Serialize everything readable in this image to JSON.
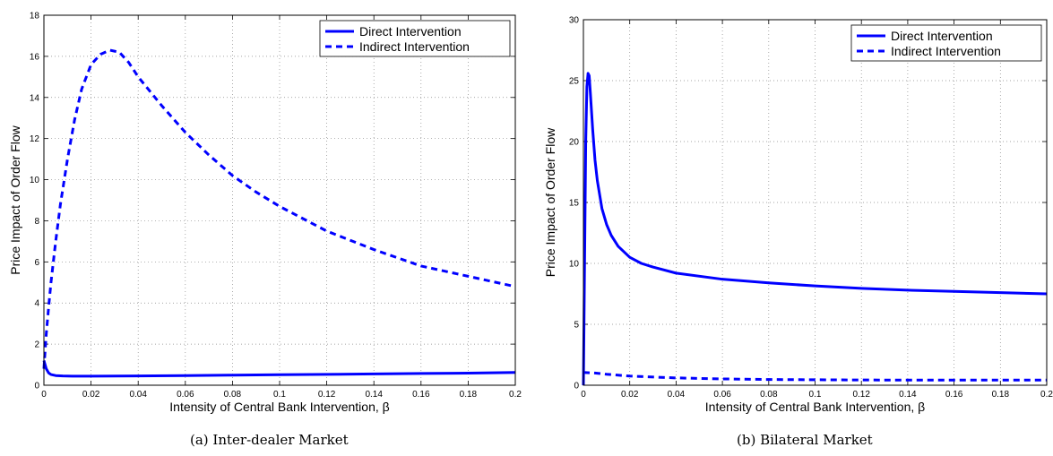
{
  "chart_data": [
    {
      "type": "line",
      "caption": "(a) Inter-dealer Market",
      "xlabel": "Intensity of Central Bank Intervention,  β",
      "ylabel": "Price Impact of Order Flow",
      "xlim": [
        0,
        0.2
      ],
      "ylim": [
        0,
        18
      ],
      "xticks": [
        0,
        0.02,
        0.04,
        0.06,
        0.08,
        0.1,
        0.12,
        0.14,
        0.16,
        0.18,
        0.2
      ],
      "xtick_labels": [
        "0",
        "0.02",
        "0.04",
        "0.06",
        "0.08",
        "0.1",
        "0.12",
        "0.14",
        "0.16",
        "0.18",
        "0.2"
      ],
      "yticks": [
        0,
        2,
        4,
        6,
        8,
        10,
        12,
        14,
        16,
        18
      ],
      "ytick_labels": [
        "0",
        "2",
        "4",
        "6",
        "8",
        "10",
        "12",
        "14",
        "16",
        "18"
      ],
      "grid": true,
      "legend_position": "top-right",
      "series": [
        {
          "name": "Direct Intervention",
          "style": "solid",
          "color": "#0000ff",
          "x": [
            0,
            0.001,
            0.002,
            0.003,
            0.005,
            0.008,
            0.012,
            0.02,
            0.04,
            0.06,
            0.08,
            0.1,
            0.12,
            0.14,
            0.16,
            0.18,
            0.2
          ],
          "y": [
            1.2,
            0.8,
            0.6,
            0.52,
            0.47,
            0.45,
            0.44,
            0.44,
            0.45,
            0.47,
            0.49,
            0.51,
            0.53,
            0.55,
            0.57,
            0.59,
            0.62
          ]
        },
        {
          "name": "Indirect Intervention",
          "style": "dashed",
          "color": "#0000ff",
          "x": [
            0,
            0.001,
            0.002,
            0.003,
            0.005,
            0.007,
            0.01,
            0.013,
            0.016,
            0.02,
            0.024,
            0.028,
            0.032,
            0.036,
            0.04,
            0.05,
            0.06,
            0.07,
            0.08,
            0.09,
            0.1,
            0.12,
            0.14,
            0.16,
            0.18,
            0.2
          ],
          "y": [
            0.8,
            2.5,
            3.8,
            5.0,
            7.0,
            8.8,
            11.0,
            12.9,
            14.4,
            15.6,
            16.1,
            16.3,
            16.2,
            15.7,
            15.0,
            13.6,
            12.3,
            11.2,
            10.2,
            9.4,
            8.7,
            7.5,
            6.6,
            5.8,
            5.3,
            4.8
          ]
        }
      ]
    },
    {
      "type": "line",
      "caption": "(b) Bilateral Market",
      "xlabel": "Intensity of Central Bank Intervention,  β",
      "ylabel": "Price Impact of Order Flow",
      "xlim": [
        0,
        0.2
      ],
      "ylim": [
        0,
        30
      ],
      "xticks": [
        0,
        0.02,
        0.04,
        0.06,
        0.08,
        0.1,
        0.12,
        0.14,
        0.16,
        0.18,
        0.2
      ],
      "xtick_labels": [
        "0",
        "0.02",
        "0.04",
        "0.06",
        "0.08",
        "0.1",
        "0.12",
        "0.14",
        "0.16",
        "0.18",
        "0.2"
      ],
      "yticks": [
        0,
        5,
        10,
        15,
        20,
        25,
        30
      ],
      "ytick_labels": [
        "0",
        "5",
        "10",
        "15",
        "20",
        "25",
        "30"
      ],
      "grid": true,
      "legend_position": "top-right",
      "series": [
        {
          "name": "Direct Intervention",
          "style": "solid",
          "color": "#0000ff",
          "x": [
            0,
            0.0005,
            0.001,
            0.0015,
            0.002,
            0.0025,
            0.003,
            0.004,
            0.005,
            0.006,
            0.008,
            0.01,
            0.012,
            0.015,
            0.02,
            0.025,
            0.03,
            0.04,
            0.06,
            0.08,
            0.1,
            0.12,
            0.14,
            0.16,
            0.18,
            0.2
          ],
          "y": [
            0,
            10.0,
            20.0,
            24.5,
            25.6,
            25.4,
            24.0,
            21.0,
            18.5,
            16.8,
            14.5,
            13.2,
            12.3,
            11.4,
            10.5,
            10.0,
            9.7,
            9.2,
            8.7,
            8.4,
            8.15,
            7.95,
            7.8,
            7.7,
            7.6,
            7.5
          ]
        },
        {
          "name": "Indirect Intervention",
          "style": "dashed",
          "color": "#0000ff",
          "x": [
            0,
            0.005,
            0.01,
            0.02,
            0.04,
            0.06,
            0.08,
            0.1,
            0.12,
            0.14,
            0.16,
            0.18,
            0.2
          ],
          "y": [
            1.05,
            1.0,
            0.9,
            0.75,
            0.6,
            0.52,
            0.47,
            0.45,
            0.43,
            0.42,
            0.42,
            0.42,
            0.42
          ]
        }
      ]
    }
  ]
}
